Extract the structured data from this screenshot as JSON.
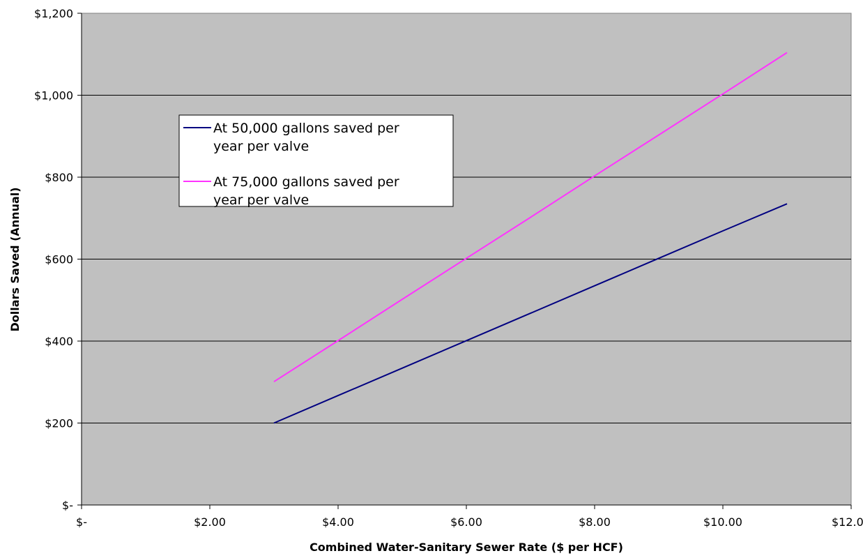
{
  "chart_data": {
    "type": "line",
    "title": "",
    "xlabel": "Combined Water-Sanitary Sewer Rate ($ per HCF)",
    "ylabel": "Dollars Saved (Annual)",
    "xlim": [
      0,
      12
    ],
    "ylim": [
      0,
      1200
    ],
    "x_ticks": [
      0,
      2,
      4,
      6,
      8,
      10,
      12
    ],
    "x_tick_labels": [
      "$-",
      "$2.00",
      "$4.00",
      "$6.00",
      "$8.00",
      "$10.00",
      "$12.00"
    ],
    "y_ticks": [
      0,
      200,
      400,
      600,
      800,
      1000,
      1200
    ],
    "y_tick_labels": [
      "$-",
      "$200",
      "$400",
      "$600",
      "$800",
      "$1,000",
      "$1,200"
    ],
    "grid": "horizontal",
    "plot_background": "#c0c0c0",
    "legend_position": "upper-left",
    "series": [
      {
        "name": "At 50,000 gallons saved per year per valve",
        "legend_lines": [
          "At 50,000 gallons saved per",
          "year per valve"
        ],
        "color": "#000080",
        "x": [
          3,
          4,
          5,
          6,
          7,
          8,
          9,
          10,
          11
        ],
        "y": [
          200,
          267,
          334,
          401,
          468,
          535,
          602,
          669,
          735
        ]
      },
      {
        "name": "At 75,000 gallons saved per year per valve",
        "legend_lines": [
          "At 75,000 gallons saved per",
          "year per valve"
        ],
        "color": "#ff33ff",
        "x": [
          3,
          4,
          5,
          6,
          7,
          8,
          9,
          10,
          11
        ],
        "y": [
          301,
          401,
          502,
          602,
          702,
          803,
          903,
          1003,
          1104
        ]
      }
    ]
  }
}
